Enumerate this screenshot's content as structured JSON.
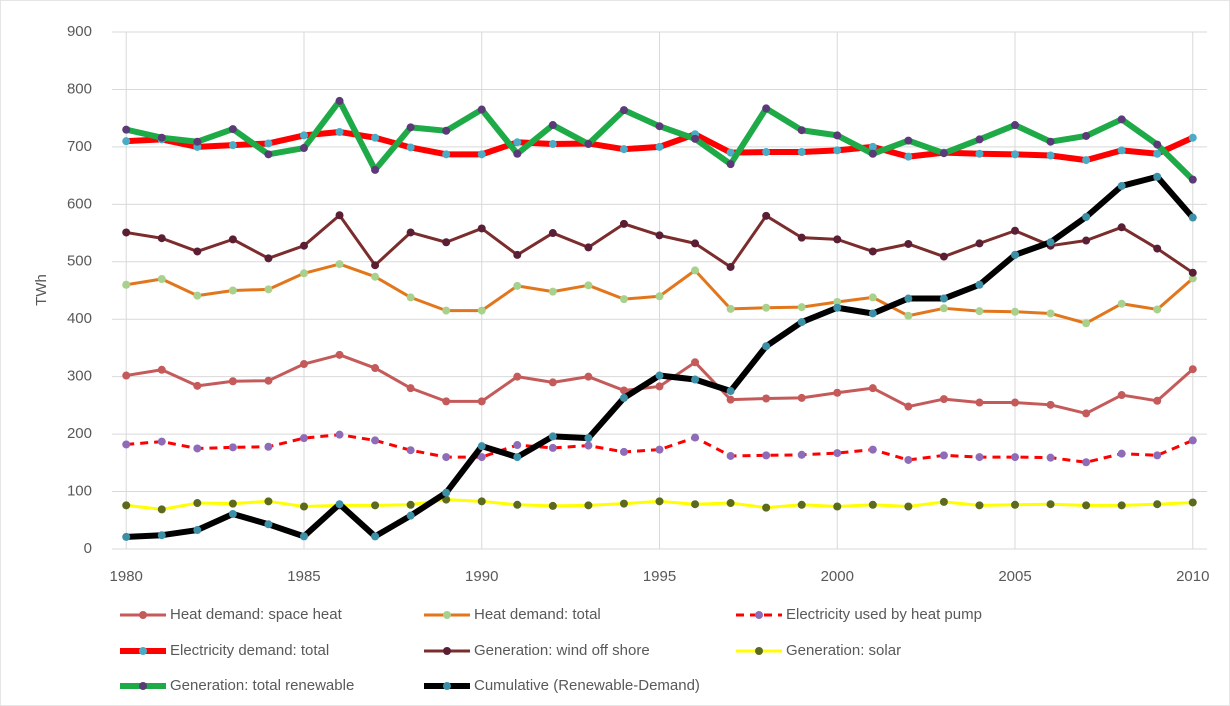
{
  "chart_data": {
    "type": "line",
    "y_label": "TWh",
    "x": [
      1980,
      1981,
      1982,
      1983,
      1984,
      1985,
      1986,
      1987,
      1988,
      1989,
      1990,
      1991,
      1992,
      1993,
      1994,
      1995,
      1996,
      1997,
      1998,
      1999,
      2000,
      2001,
      2002,
      2003,
      2004,
      2005,
      2006,
      2007,
      2008,
      2009,
      2010
    ],
    "xlim": [
      1979.6,
      2010.4
    ],
    "xticks": [
      1980,
      1985,
      1990,
      1995,
      2000,
      2005,
      2010
    ],
    "ylim": [
      0,
      900
    ],
    "yticks": [
      0,
      100,
      200,
      300,
      400,
      500,
      600,
      700,
      800,
      900
    ],
    "grid": true,
    "series": [
      {
        "name": "Heat demand: space heat",
        "color": "#c55a5a",
        "marker_color": "#c55a5a",
        "width": 3,
        "dashed": false,
        "values": [
          302,
          312,
          284,
          292,
          293,
          322,
          338,
          315,
          280,
          257,
          257,
          300,
          290,
          300,
          276,
          283,
          325,
          260,
          262,
          263,
          272,
          280,
          248,
          261,
          255,
          255,
          251,
          236,
          268,
          258,
          313
        ]
      },
      {
        "name": "Heat demand: total",
        "color": "#e2761c",
        "marker_color": "#a9d18e",
        "width": 3,
        "dashed": false,
        "values": [
          460,
          470,
          441,
          450,
          452,
          480,
          496,
          474,
          438,
          415,
          415,
          458,
          448,
          459,
          435,
          440,
          485,
          418,
          420,
          421,
          430,
          438,
          406,
          419,
          414,
          413,
          410,
          393,
          427,
          417,
          471
        ]
      },
      {
        "name": "Electricity used by heat pump",
        "color": "#ff0000",
        "marker_color": "#8e6cb8",
        "width": 3,
        "dashed": true,
        "values": [
          182,
          187,
          175,
          177,
          178,
          193,
          199,
          189,
          172,
          160,
          160,
          181,
          176,
          180,
          169,
          173,
          194,
          162,
          163,
          164,
          167,
          173,
          155,
          163,
          160,
          160,
          159,
          151,
          166,
          163,
          189
        ]
      },
      {
        "name": "Electricity demand: total",
        "color": "#ff0000",
        "marker_color": "#4bacc6",
        "width": 6,
        "dashed": false,
        "values": [
          710,
          713,
          700,
          703,
          706,
          720,
          726,
          716,
          699,
          687,
          687,
          708,
          705,
          706,
          696,
          700,
          722,
          690,
          691,
          691,
          694,
          700,
          683,
          690,
          688,
          687,
          685,
          677,
          694,
          688,
          716
        ]
      },
      {
        "name": "Generation: wind off shore",
        "color": "#7b2c2c",
        "marker_color": "#5a1f35",
        "width": 3,
        "dashed": false,
        "values": [
          551,
          541,
          518,
          539,
          506,
          528,
          581,
          494,
          551,
          534,
          558,
          512,
          550,
          525,
          566,
          546,
          532,
          491,
          580,
          542,
          539,
          518,
          531,
          509,
          532,
          554,
          528,
          537,
          560,
          523,
          481
        ]
      },
      {
        "name": "Generation: solar",
        "color": "#ffff00",
        "marker_color": "#5b6a1e",
        "width": 3,
        "dashed": false,
        "values": [
          76,
          69,
          80,
          79,
          83,
          74,
          76,
          76,
          77,
          86,
          83,
          77,
          75,
          76,
          79,
          83,
          78,
          80,
          72,
          77,
          74,
          77,
          74,
          82,
          76,
          77,
          78,
          76,
          76,
          78,
          81
        ]
      },
      {
        "name": "Generation: total renewable",
        "color": "#1faa48",
        "marker_color": "#5b3a78",
        "width": 6,
        "dashed": false,
        "values": [
          730,
          716,
          709,
          731,
          687,
          698,
          780,
          660,
          734,
          728,
          765,
          688,
          738,
          705,
          764,
          736,
          714,
          670,
          767,
          729,
          720,
          688,
          711,
          689,
          713,
          738,
          709,
          719,
          748,
          704,
          643
        ]
      },
      {
        "name": "Cumulative (Renewable-Demand)",
        "color": "#000000",
        "marker_color": "#3b8fa6",
        "width": 6,
        "dashed": false,
        "values": [
          21,
          24,
          33,
          61,
          43,
          22,
          78,
          22,
          58,
          98,
          179,
          160,
          196,
          193,
          263,
          302,
          295,
          275,
          353,
          395,
          420,
          410,
          436,
          436,
          460,
          512,
          534,
          578,
          632,
          648,
          577
        ]
      }
    ]
  }
}
